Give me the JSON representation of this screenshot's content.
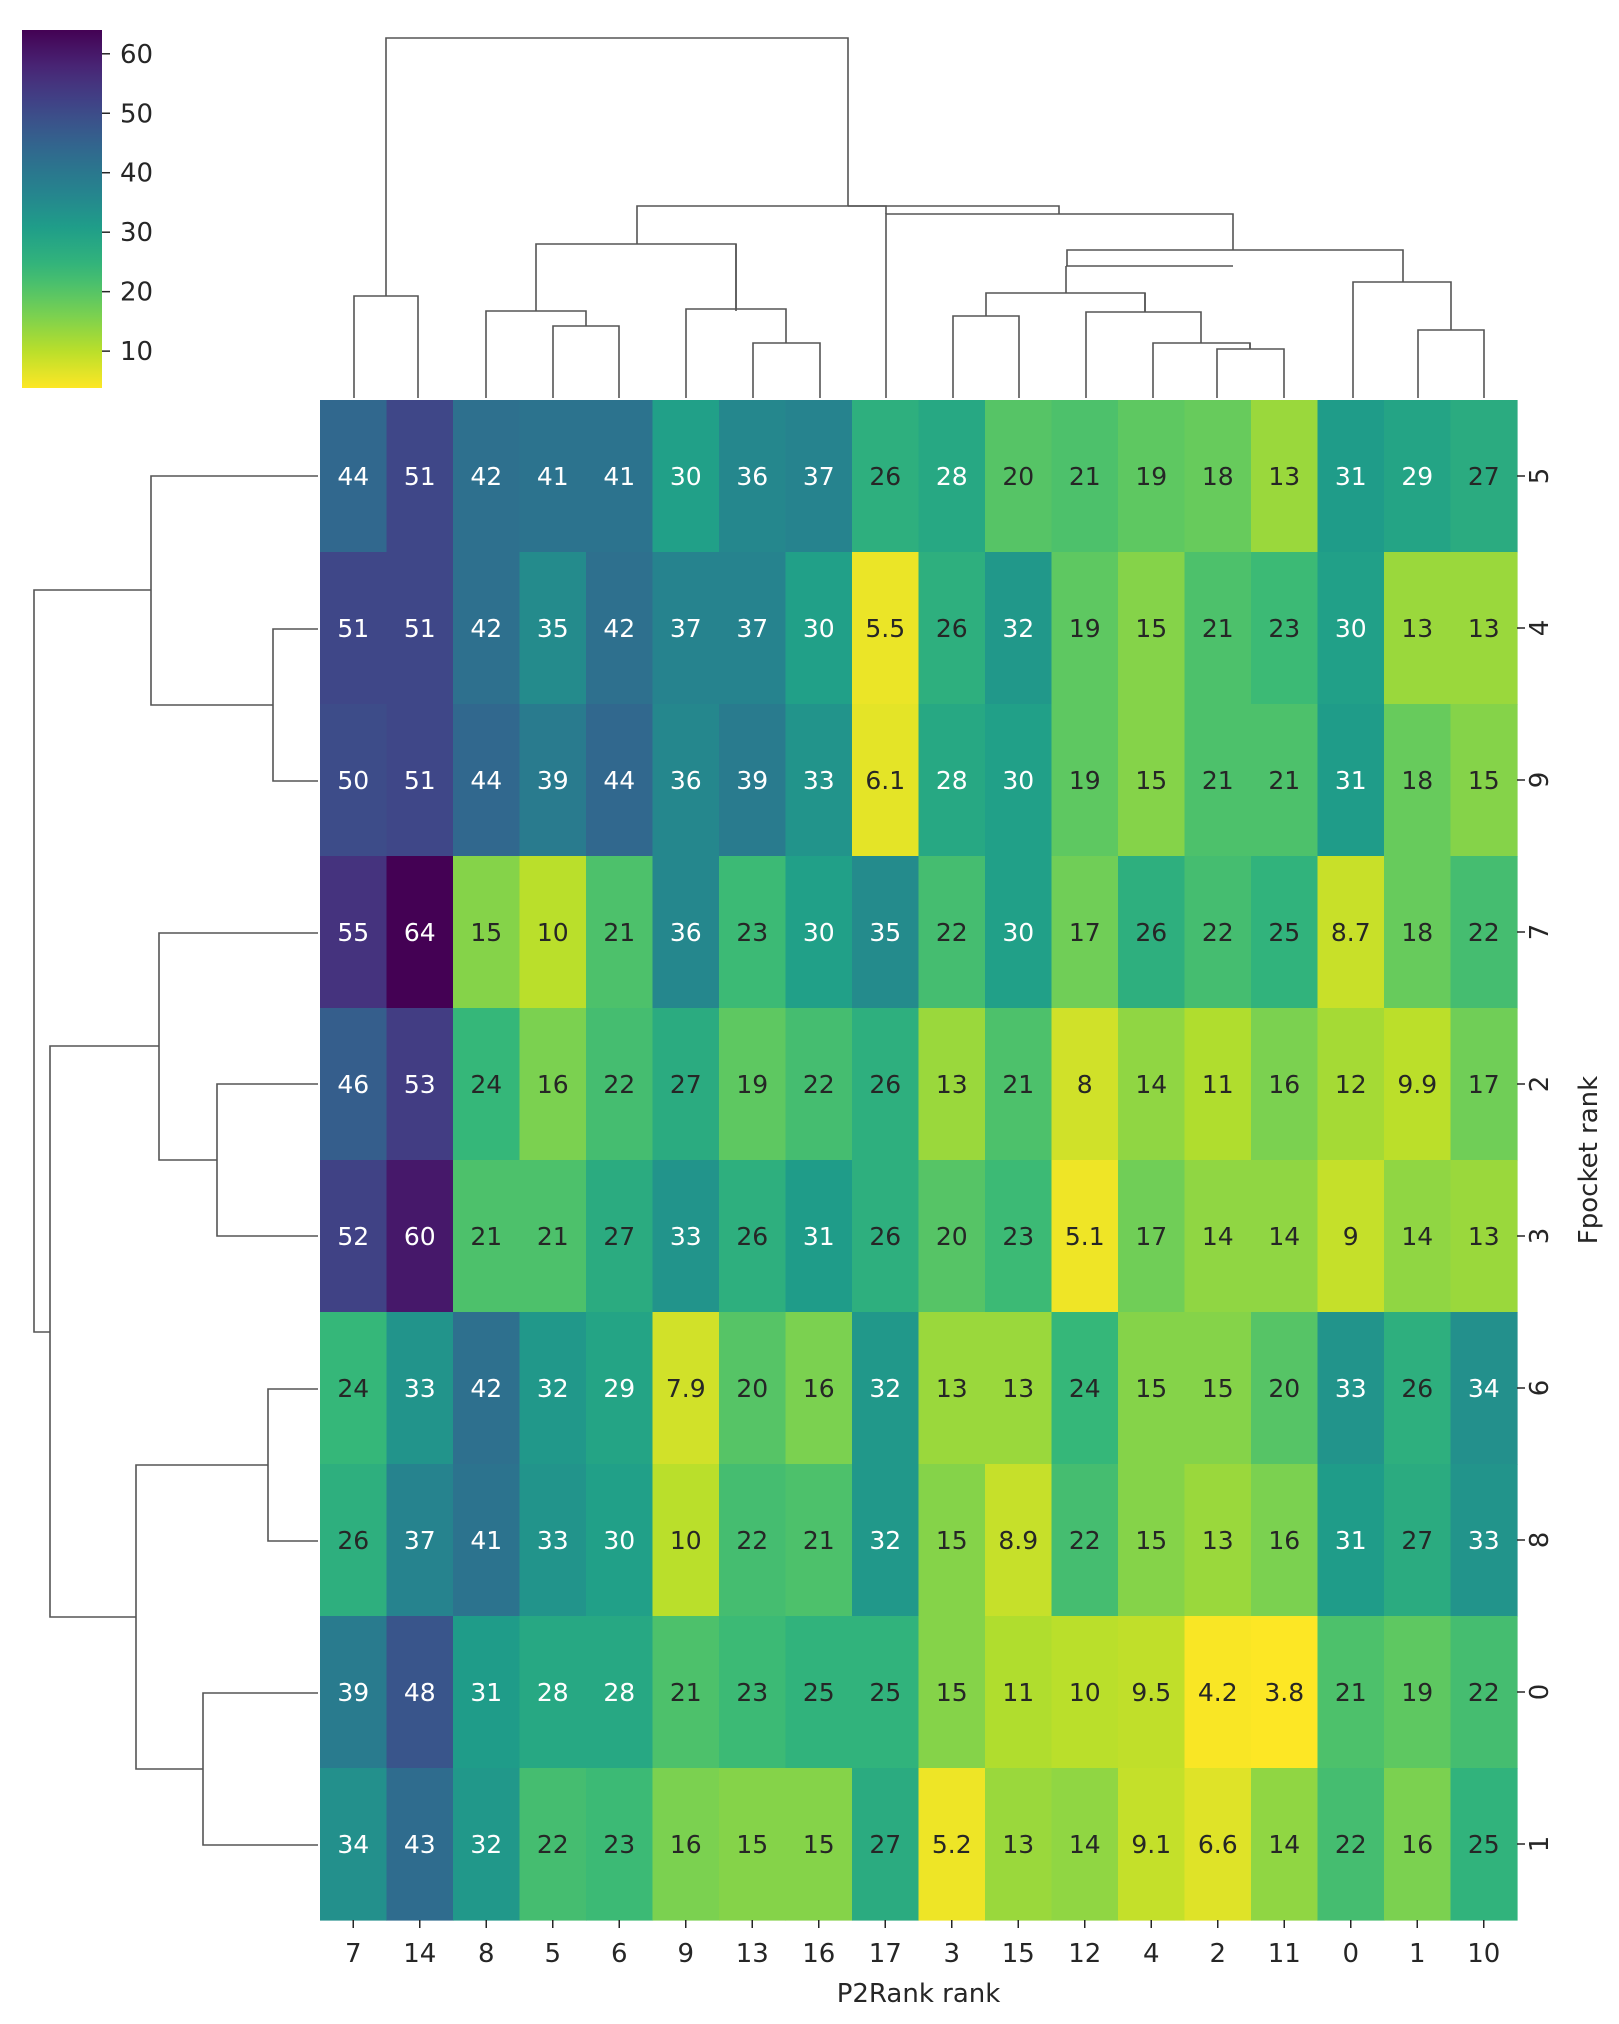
{
  "chart_data": {
    "type": "heatmap",
    "variant": "clustermap",
    "colormap": "viridis_r",
    "xlabel": "P2Rank rank",
    "ylabel": "Fpocket rank",
    "x_categories": [
      "7",
      "14",
      "8",
      "5",
      "6",
      "9",
      "13",
      "16",
      "17",
      "3",
      "15",
      "12",
      "4",
      "2",
      "11",
      "0",
      "1",
      "10"
    ],
    "y_categories": [
      "5",
      "4",
      "9",
      "7",
      "2",
      "3",
      "6",
      "8",
      "0",
      "1"
    ],
    "values": [
      [
        44,
        51,
        42,
        41,
        41,
        30,
        36,
        37,
        26,
        28,
        20,
        21,
        19,
        18,
        13,
        31,
        29,
        27
      ],
      [
        51,
        51,
        42,
        35,
        42,
        37,
        37,
        30,
        5.5,
        26,
        32,
        19,
        15,
        21,
        23,
        30,
        13,
        13
      ],
      [
        50,
        51,
        44,
        39,
        44,
        36,
        39,
        33,
        6.1,
        28,
        30,
        19,
        15,
        21,
        21,
        31,
        18,
        15
      ],
      [
        55,
        64,
        15,
        10,
        21,
        36,
        23,
        30,
        35,
        22,
        30,
        17,
        26,
        22,
        25,
        8.7,
        18,
        22
      ],
      [
        46,
        53,
        24,
        16,
        22,
        27,
        19,
        22,
        26,
        13,
        21,
        8,
        14,
        11,
        16,
        12,
        9.9,
        17
      ],
      [
        52,
        60,
        21,
        21,
        27,
        33,
        26,
        31,
        26,
        20,
        23,
        5.1,
        17,
        14,
        14,
        9,
        14,
        13
      ],
      [
        24,
        33,
        42,
        32,
        29,
        7.9,
        20,
        16,
        32,
        13,
        13,
        24,
        15,
        15,
        20,
        33,
        26,
        34
      ],
      [
        26,
        37,
        41,
        33,
        30,
        10,
        22,
        21,
        32,
        15,
        8.9,
        22,
        15,
        13,
        16,
        31,
        27,
        33
      ],
      [
        39,
        48,
        31,
        28,
        28,
        21,
        23,
        25,
        25,
        15,
        11,
        10,
        9.5,
        4.2,
        3.8,
        21,
        19,
        22
      ],
      [
        34,
        43,
        32,
        22,
        23,
        16,
        15,
        15,
        27,
        5.2,
        13,
        14,
        9.1,
        6.6,
        14,
        22,
        16,
        25
      ]
    ],
    "colorbar": {
      "min": 3.8,
      "max": 64,
      "ticks": [
        "10",
        "20",
        "30",
        "40",
        "50",
        "60"
      ]
    }
  }
}
